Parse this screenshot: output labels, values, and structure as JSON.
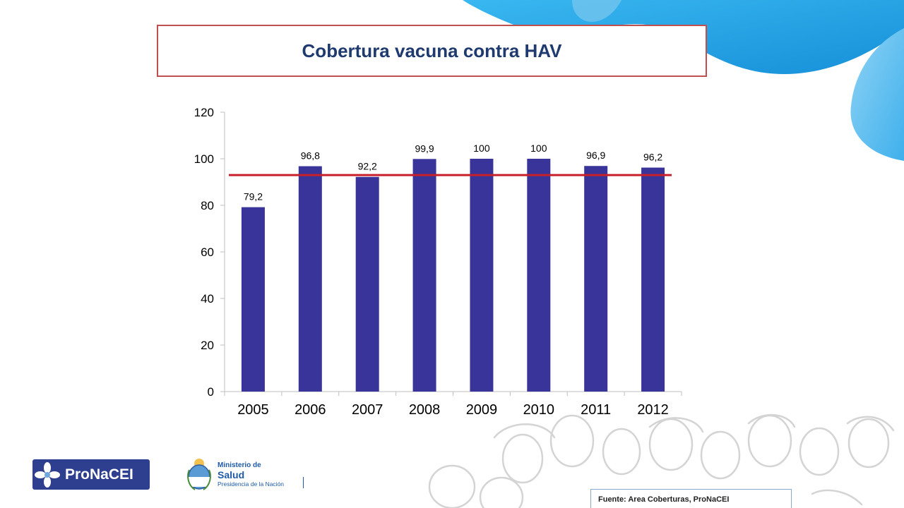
{
  "slide": {
    "title": "Cobertura vacuna contra HAV",
    "source": "Fuente: Area Coberturas, ProNaCEI"
  },
  "logos": {
    "pronacei": "ProNaCEI",
    "ministerio_line1": "Ministerio de",
    "ministerio_line2": "Salud",
    "ministerio_line3": "Presidencia de la Nación"
  },
  "colors": {
    "bar": "#383499",
    "reference_line": "#c8202a",
    "title": "#1f3a6e",
    "title_border": "#c0504d",
    "blue_accent": "#1fa0e8"
  },
  "chart_data": {
    "type": "bar",
    "categories": [
      "2005",
      "2006",
      "2007",
      "2008",
      "2009",
      "2010",
      "2011",
      "2012"
    ],
    "values": [
      79.2,
      96.8,
      92.2,
      99.9,
      100,
      100,
      96.9,
      96.2
    ],
    "data_labels": [
      "79,2",
      "96,8",
      "92,2",
      "99,9",
      "100",
      "100",
      "96,9",
      "96,2"
    ],
    "ylim": [
      0,
      120
    ],
    "yticks": [
      0,
      20,
      40,
      60,
      80,
      100,
      120
    ],
    "ytick_labels": [
      "0",
      "20",
      "40",
      "60",
      "80",
      "100",
      "120"
    ],
    "reference_line": 93,
    "grid": false,
    "legend": "none"
  }
}
